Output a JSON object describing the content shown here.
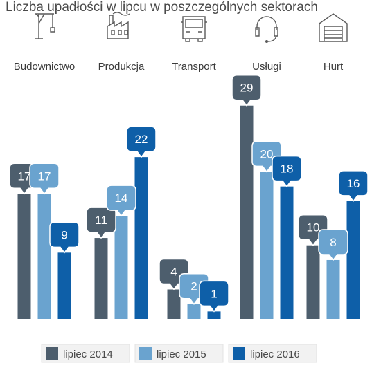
{
  "chart_data": {
    "type": "bar",
    "title": "Liczba upadłości w lipcu w poszczególnych sektorach",
    "categories": [
      "Budownictwo",
      "Produkcja",
      "Transport",
      "Usługi",
      "Hurt"
    ],
    "category_icons": [
      "crane-icon",
      "factory-icon",
      "truck-icon",
      "headset-icon",
      "warehouse-icon"
    ],
    "series": [
      {
        "name": "lipiec 2014",
        "color": "#4d5e6d",
        "values": [
          17,
          11,
          4,
          29,
          10
        ]
      },
      {
        "name": "lipiec 2015",
        "color": "#6aa3cf",
        "values": [
          17,
          14,
          2,
          20,
          8
        ]
      },
      {
        "name": "lipiec 2016",
        "color": "#0e5fa8",
        "values": [
          9,
          22,
          1,
          18,
          16
        ]
      }
    ],
    "legend_position": "bottom",
    "grid": false,
    "ylim": [
      0,
      30
    ]
  }
}
